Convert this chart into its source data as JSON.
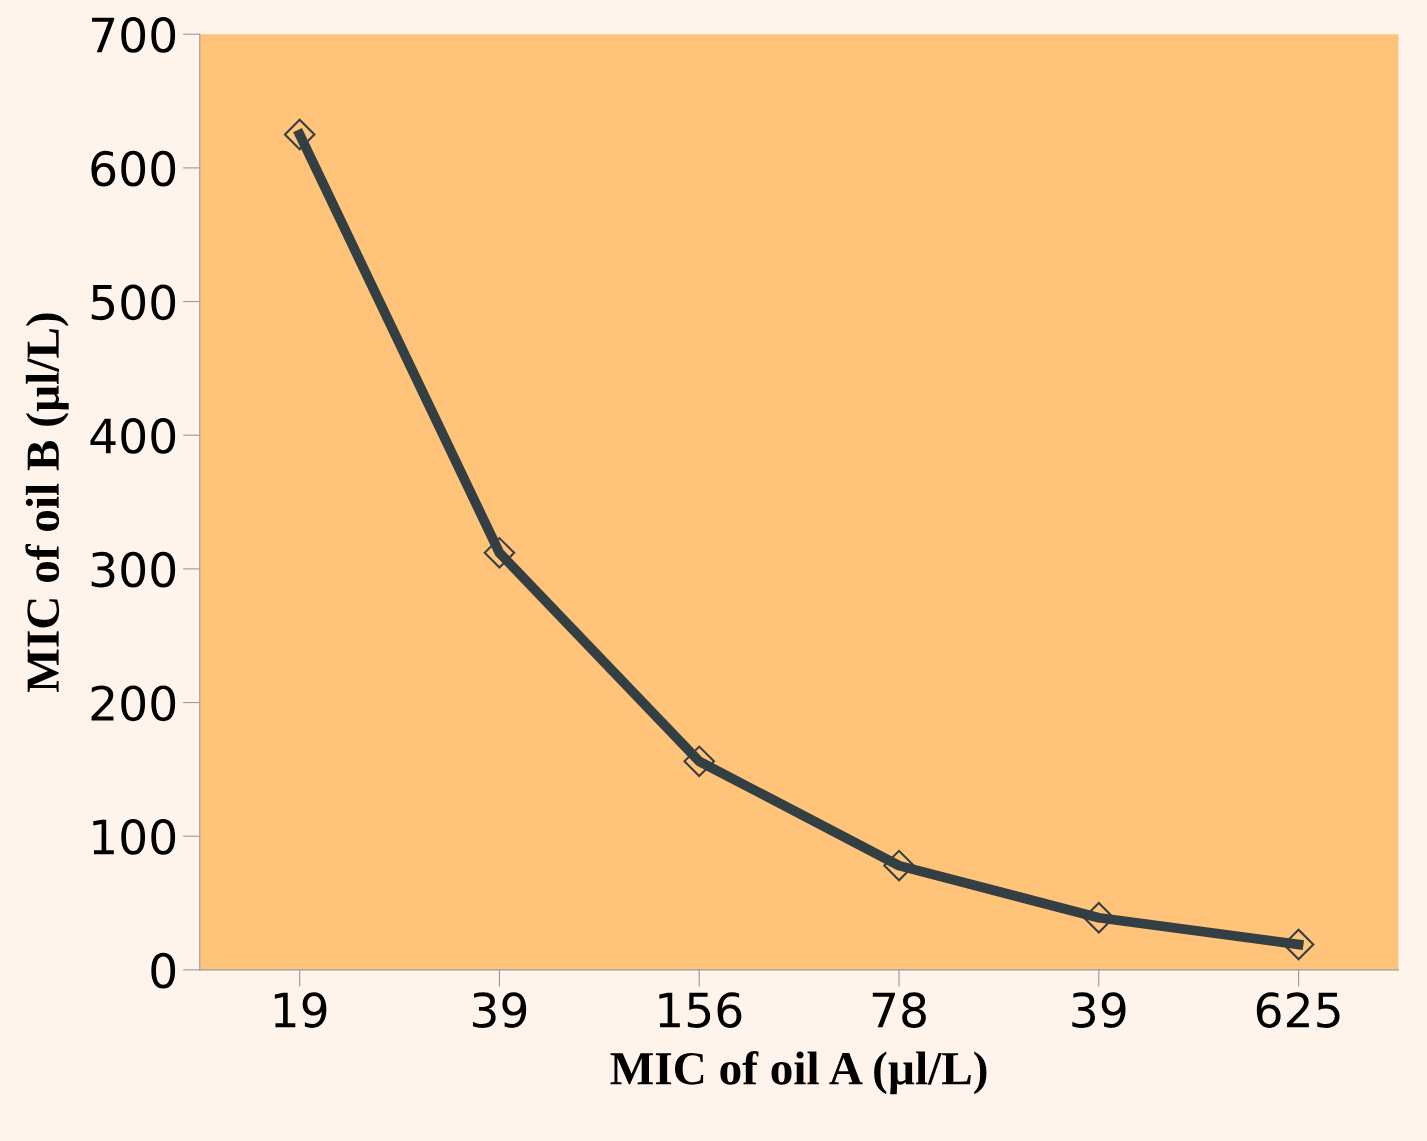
{
  "chart_data": {
    "type": "line",
    "xlabel": "MIC of oil A (µl/L)",
    "ylabel": "MIC of oil B (µl/L)",
    "categories": [
      "19",
      "39",
      "156",
      "78",
      "39",
      "625"
    ],
    "series": [
      {
        "color": "#343f44",
        "values": [
          625,
          312,
          156,
          78,
          39,
          19
        ]
      }
    ],
    "ylim": [
      0,
      700
    ],
    "yticks": [
      0,
      100,
      200,
      300,
      400,
      500,
      600,
      700
    ],
    "marker": "diamond",
    "line_style": "solid",
    "grid": false,
    "legend": false
  }
}
